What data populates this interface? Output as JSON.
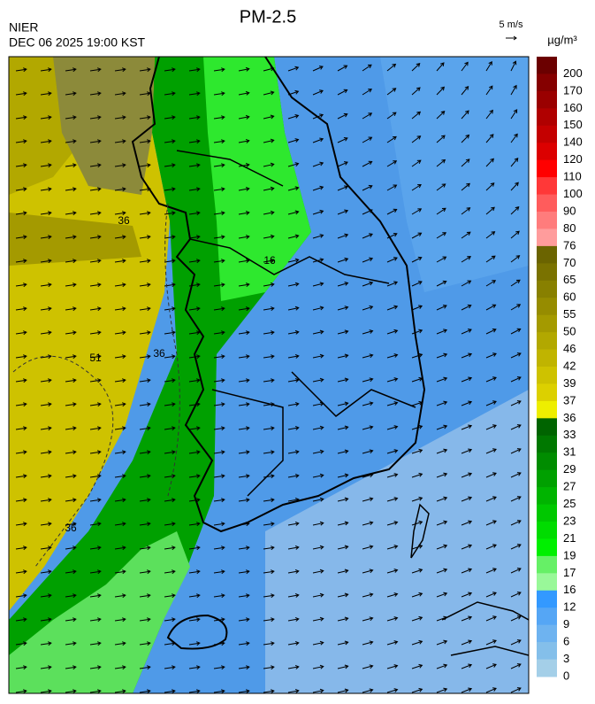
{
  "header": {
    "title": "PM-2.5",
    "agency": "NIER",
    "datetime": "DEC 06 2025 19:00 KST"
  },
  "wind_legend": {
    "label": "5 m/s"
  },
  "colorbar": {
    "unit": "µg/m³",
    "ticks": [
      200,
      170,
      160,
      150,
      140,
      120,
      110,
      100,
      90,
      80,
      76,
      70,
      65,
      60,
      55,
      50,
      46,
      42,
      39,
      37,
      36,
      33,
      31,
      29,
      27,
      25,
      23,
      21,
      19,
      17,
      16,
      12,
      9,
      6,
      3,
      0
    ],
    "colors": [
      "#6b0000",
      "#850000",
      "#9a0000",
      "#b00000",
      "#c40000",
      "#dc0000",
      "#ff0000",
      "#ff3838",
      "#ff5c5c",
      "#ff7c7c",
      "#ff9c9c",
      "#6b6400",
      "#7a7200",
      "#888000",
      "#968c00",
      "#a49a00",
      "#b2a800",
      "#c0b400",
      "#cec200",
      "#dcd000",
      "#eeee00",
      "#006400",
      "#007800",
      "#008c00",
      "#00a000",
      "#00b400",
      "#00c800",
      "#00dc00",
      "#00f000",
      "#66f066",
      "#99f899",
      "#3399ff",
      "#55a6f5",
      "#6eb3f0",
      "#84bfea",
      "#a4cfe8"
    ]
  },
  "map": {
    "contour_labels": [
      "16",
      "36",
      "51",
      "36",
      "36"
    ]
  }
}
